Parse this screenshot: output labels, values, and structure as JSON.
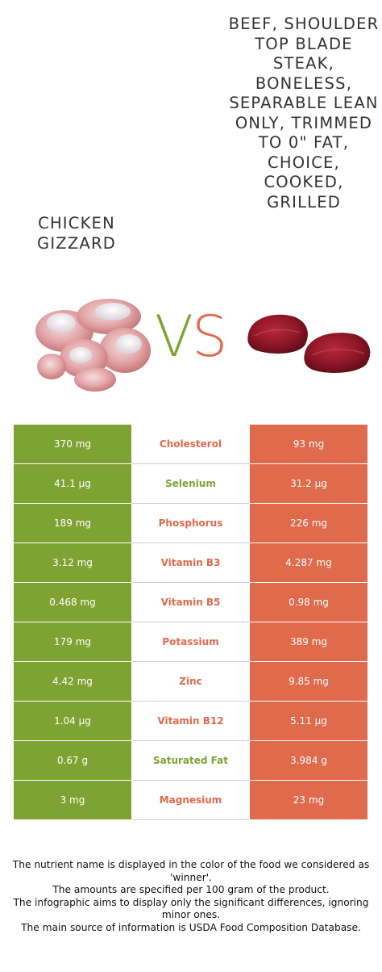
{
  "left_food": {
    "title": "Chicken gizzard",
    "color": "#7fa332"
  },
  "right_food": {
    "title": "Beef, shoulder top blade steak, boneless, separable lean only, trimmed to 0\" fat, choice, cooked, grilled",
    "color": "#e06a4c"
  },
  "vs": {
    "v": "V",
    "s": "S"
  },
  "rows": [
    {
      "left": "370 mg",
      "nutrient": "Cholesterol",
      "right": "93 mg",
      "winner": "right"
    },
    {
      "left": "41.1 µg",
      "nutrient": "Selenium",
      "right": "31.2 µg",
      "winner": "left"
    },
    {
      "left": "189 mg",
      "nutrient": "Phosphorus",
      "right": "226 mg",
      "winner": "right"
    },
    {
      "left": "3.12 mg",
      "nutrient": "Vitamin B3",
      "right": "4.287 mg",
      "winner": "right"
    },
    {
      "left": "0.468 mg",
      "nutrient": "Vitamin B5",
      "right": "0.98 mg",
      "winner": "right"
    },
    {
      "left": "179 mg",
      "nutrient": "Potassium",
      "right": "389 mg",
      "winner": "right"
    },
    {
      "left": "4.42 mg",
      "nutrient": "Zinc",
      "right": "9.85 mg",
      "winner": "right"
    },
    {
      "left": "1.04 µg",
      "nutrient": "Vitamin B12",
      "right": "5.11 µg",
      "winner": "right"
    },
    {
      "left": "0.67 g",
      "nutrient": "Saturated Fat",
      "right": "3.984 g",
      "winner": "left"
    },
    {
      "left": "3 mg",
      "nutrient": "Magnesium",
      "right": "23 mg",
      "winner": "right"
    }
  ],
  "footer": {
    "line1": "The nutrient name is displayed in the color of the food we considered as 'winner'.",
    "line2": "The amounts are specified per 100 gram of the product.",
    "line3": "The infographic aims to display only the significant differences, ignoring minor ones.",
    "line4": "The main source of information is USDA Food Composition Database."
  }
}
